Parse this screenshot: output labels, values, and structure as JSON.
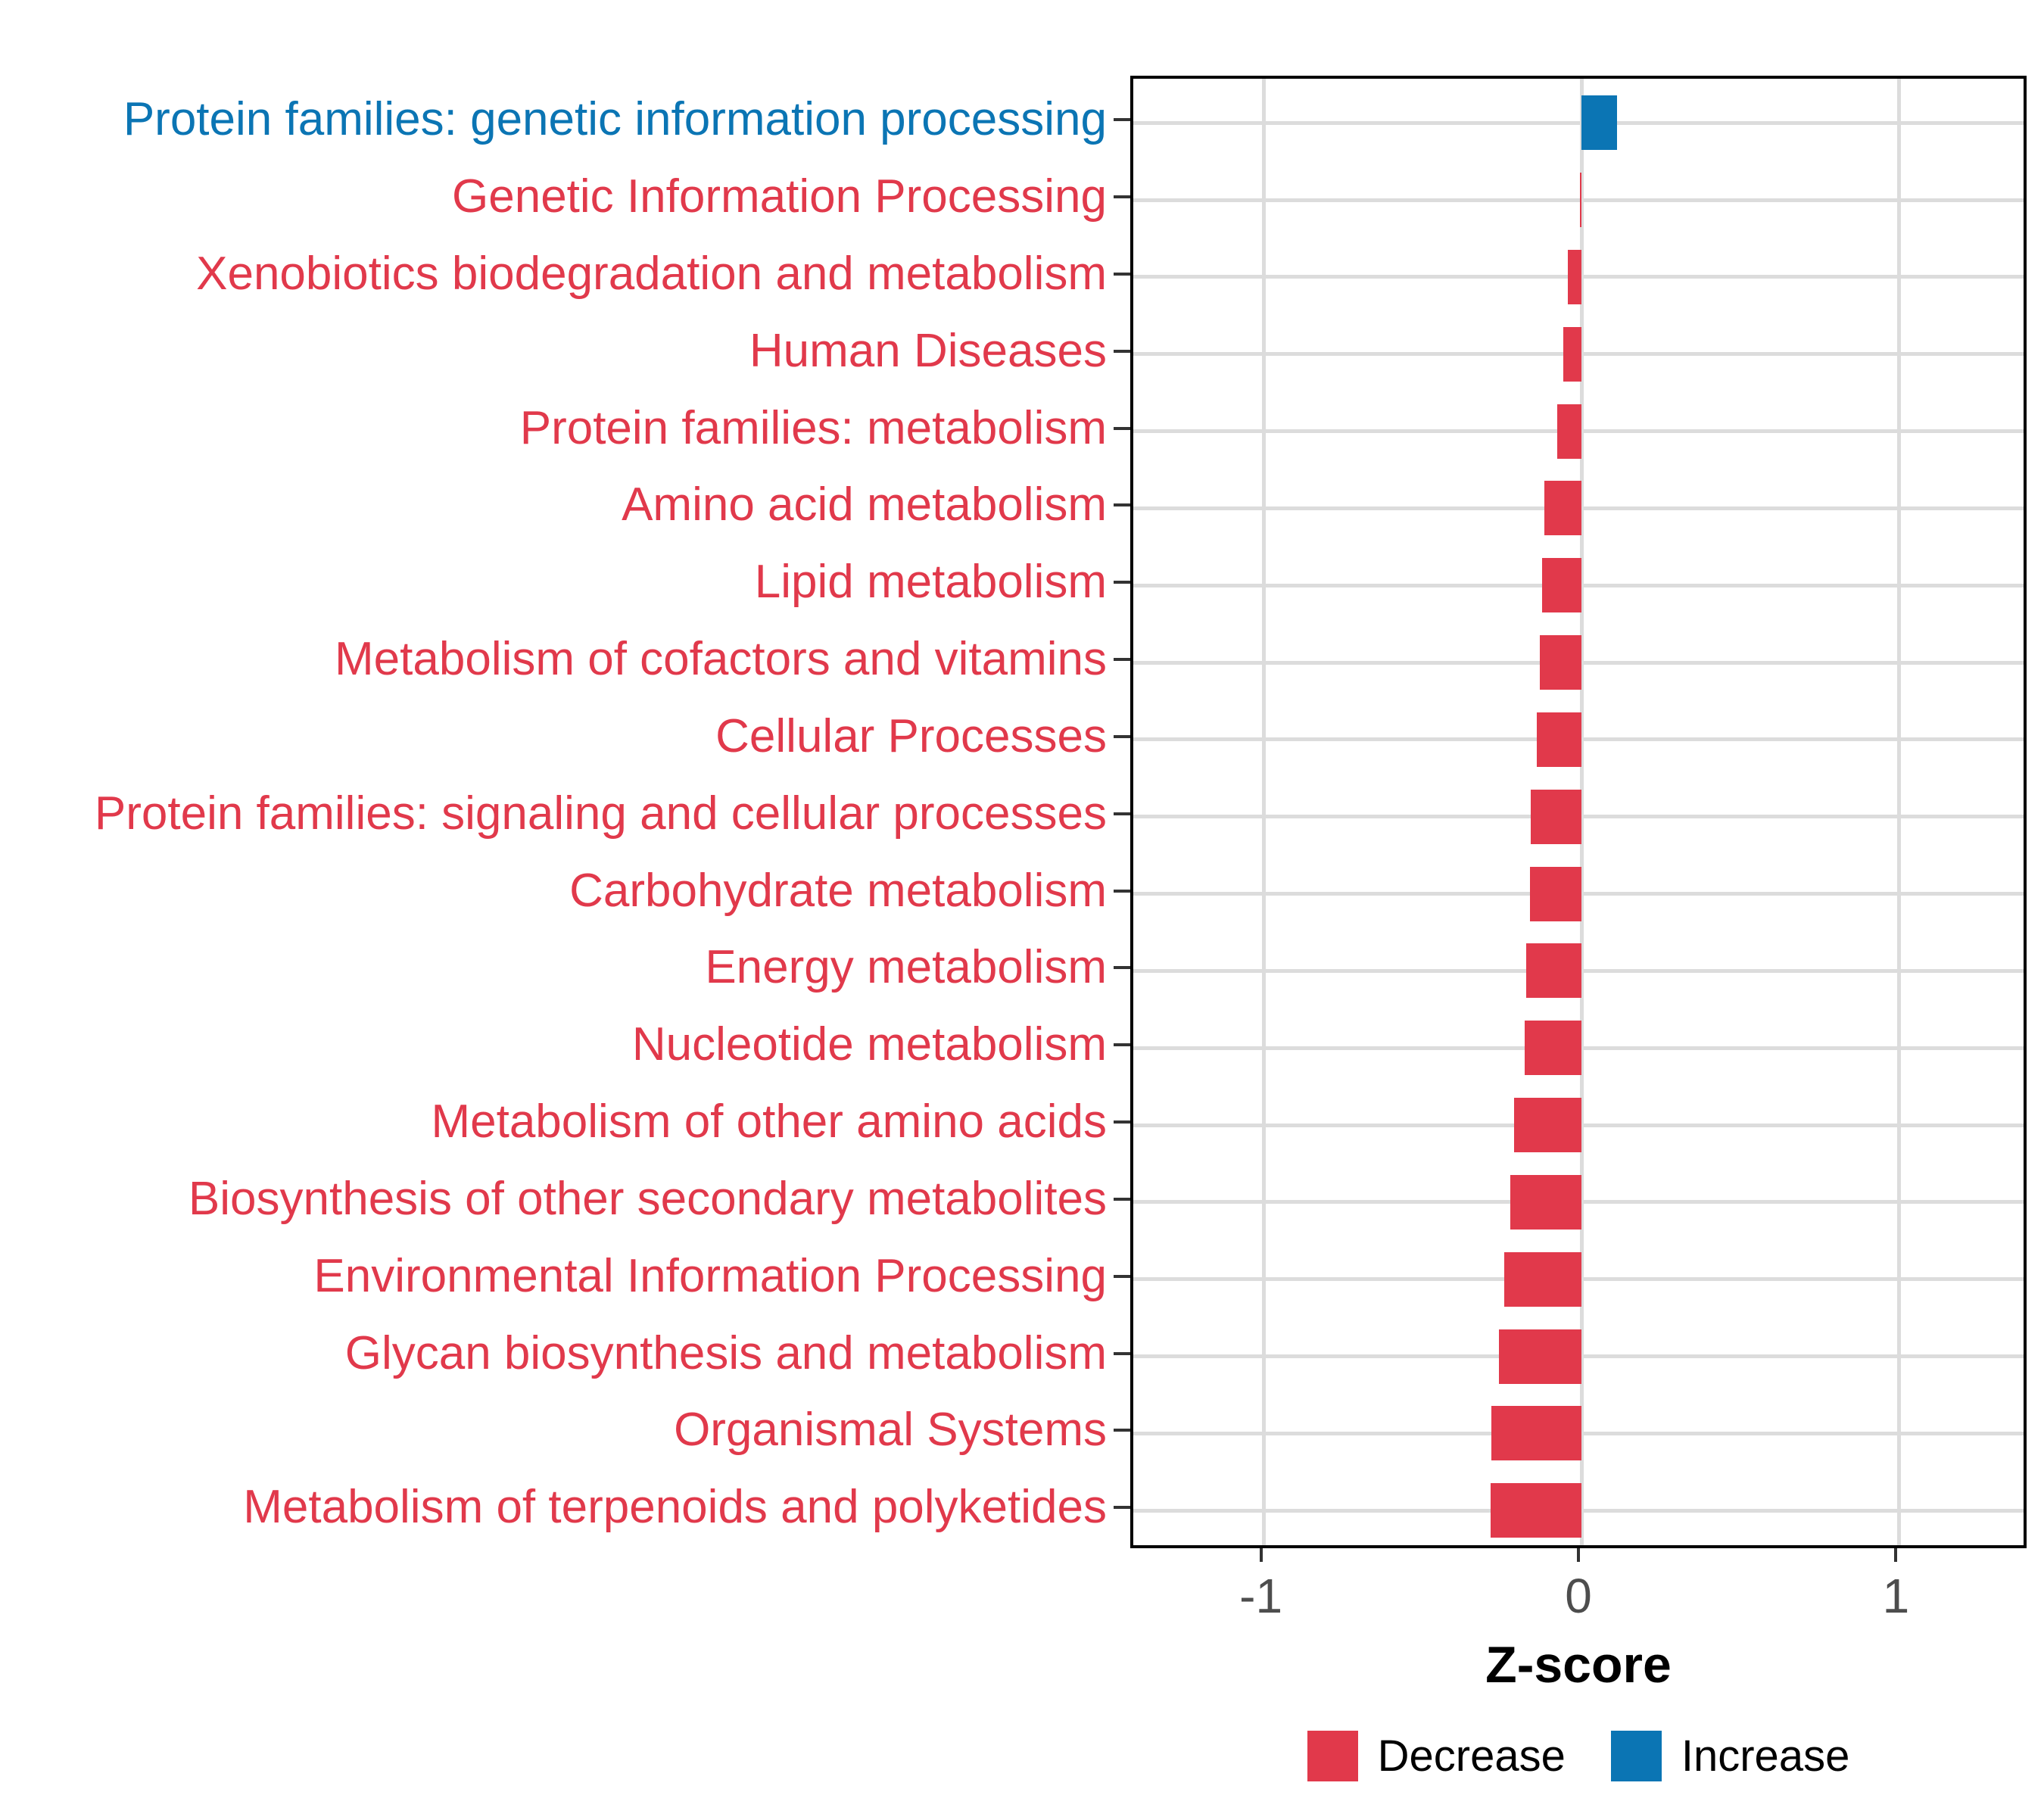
{
  "chart_data": {
    "type": "bar",
    "orientation": "horizontal",
    "title": "",
    "xlabel": "Z-score",
    "ylabel": "",
    "xlim": [
      -1.41,
      1.41
    ],
    "grid": true,
    "legend_position": "bottom",
    "x_ticks": [
      {
        "label": "-1",
        "value": -1
      },
      {
        "label": "0",
        "value": 0
      },
      {
        "label": "1",
        "value": 1
      }
    ],
    "categories": [
      "Protein families: genetic information processing",
      "Genetic Information Processing",
      "Xenobiotics biodegradation and metabolism",
      "Human Diseases",
      "Protein families: metabolism",
      "Amino acid metabolism",
      "Lipid metabolism",
      "Metabolism of cofactors and vitamins",
      "Cellular Processes",
      "Protein families: signaling and cellular processes",
      "Carbohydrate metabolism",
      "Energy metabolism",
      "Nucleotide metabolism",
      "Metabolism of other amino acids",
      "Biosynthesis of other secondary metabolites",
      "Environmental Information Processing",
      "Glycan biosynthesis and metabolism",
      "Organismal Systems",
      "Metabolism of terpenoids and polyketides"
    ],
    "values": [
      0.113,
      -0.005,
      -0.044,
      -0.057,
      -0.077,
      -0.118,
      -0.123,
      -0.131,
      -0.141,
      -0.16,
      -0.163,
      -0.173,
      -0.179,
      -0.212,
      -0.225,
      -0.244,
      -0.26,
      -0.284,
      -0.286
    ],
    "directions": [
      "Increase",
      "Decrease",
      "Decrease",
      "Decrease",
      "Decrease",
      "Decrease",
      "Decrease",
      "Decrease",
      "Decrease",
      "Decrease",
      "Decrease",
      "Decrease",
      "Decrease",
      "Decrease",
      "Decrease",
      "Decrease",
      "Decrease",
      "Decrease",
      "Decrease"
    ],
    "colors": {
      "decrease": "#E1394B",
      "increase": "#0B75B4",
      "gridline": "#DCDCDC",
      "tick": "#333333",
      "tick_label": "#4D4D4D",
      "axis_title": "#000000"
    },
    "legend": [
      {
        "label": "Decrease",
        "color_key": "decrease"
      },
      {
        "label": "Increase",
        "color_key": "increase"
      }
    ]
  }
}
